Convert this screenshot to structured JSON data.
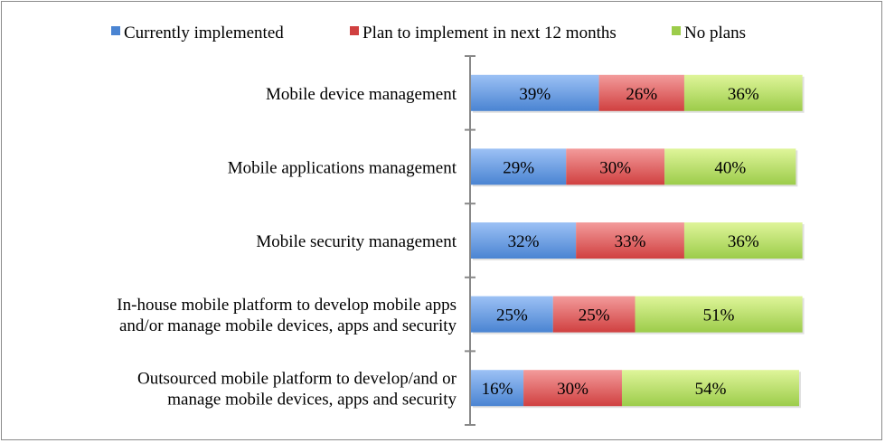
{
  "chart_data": {
    "type": "bar",
    "orientation": "horizontal",
    "stacked": true,
    "categories": [
      [
        "Mobile device management"
      ],
      [
        "Mobile applications management"
      ],
      [
        "Mobile security management"
      ],
      [
        "In-house mobile platform to develop mobile apps",
        "and/or manage mobile devices, apps and security"
      ],
      [
        "Outsourced mobile platform to develop/and or",
        "manage mobile devices, apps and security"
      ]
    ],
    "series": [
      {
        "name": "Currently implemented",
        "values": [
          39,
          29,
          32,
          25,
          16
        ],
        "color": "#4a84d2",
        "color_light": "#9cc1f5"
      },
      {
        "name": "Plan to implement in next 12 months",
        "values": [
          26,
          30,
          33,
          25,
          30
        ],
        "color": "#d04040",
        "color_light": "#f39b9b"
      },
      {
        "name": "No plans",
        "values": [
          36,
          40,
          36,
          51,
          54
        ],
        "color": "#9ccc4a",
        "color_light": "#dff59a"
      }
    ],
    "value_suffix": "%",
    "legend": "top",
    "grid": false
  }
}
